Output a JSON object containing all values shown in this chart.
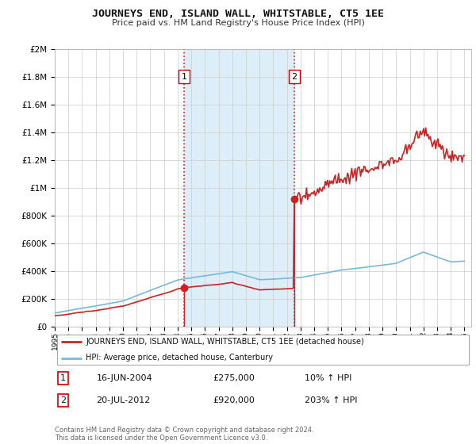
{
  "title": "JOURNEYS END, ISLAND WALL, WHITSTABLE, CT5 1EE",
  "subtitle": "Price paid vs. HM Land Registry's House Price Index (HPI)",
  "legend_line1": "JOURNEYS END, ISLAND WALL, WHITSTABLE, CT5 1EE (detached house)",
  "legend_line2": "HPI: Average price, detached house, Canterbury",
  "annotation1_date": "16-JUN-2004",
  "annotation1_price": "£275,000",
  "annotation1_hpi": "10% ↑ HPI",
  "annotation2_date": "20-JUL-2012",
  "annotation2_price": "£920,000",
  "annotation2_hpi": "203% ↑ HPI",
  "footer": "Contains HM Land Registry data © Crown copyright and database right 2024.\nThis data is licensed under the Open Government Licence v3.0.",
  "sale1_x": 2004.46,
  "sale1_y": 275000,
  "sale2_x": 2012.54,
  "sale2_y": 920000,
  "ylim": [
    0,
    2000000
  ],
  "xlim": [
    1995,
    2025.5
  ],
  "background_color": "#ffffff",
  "plot_bg_color": "#ffffff",
  "grid_color": "#cccccc",
  "hpi_line_color": "#7ab8d9",
  "price_line_color": "#cc2222",
  "shaded_color": "#ddeef8",
  "vline_color": "#cc2222"
}
